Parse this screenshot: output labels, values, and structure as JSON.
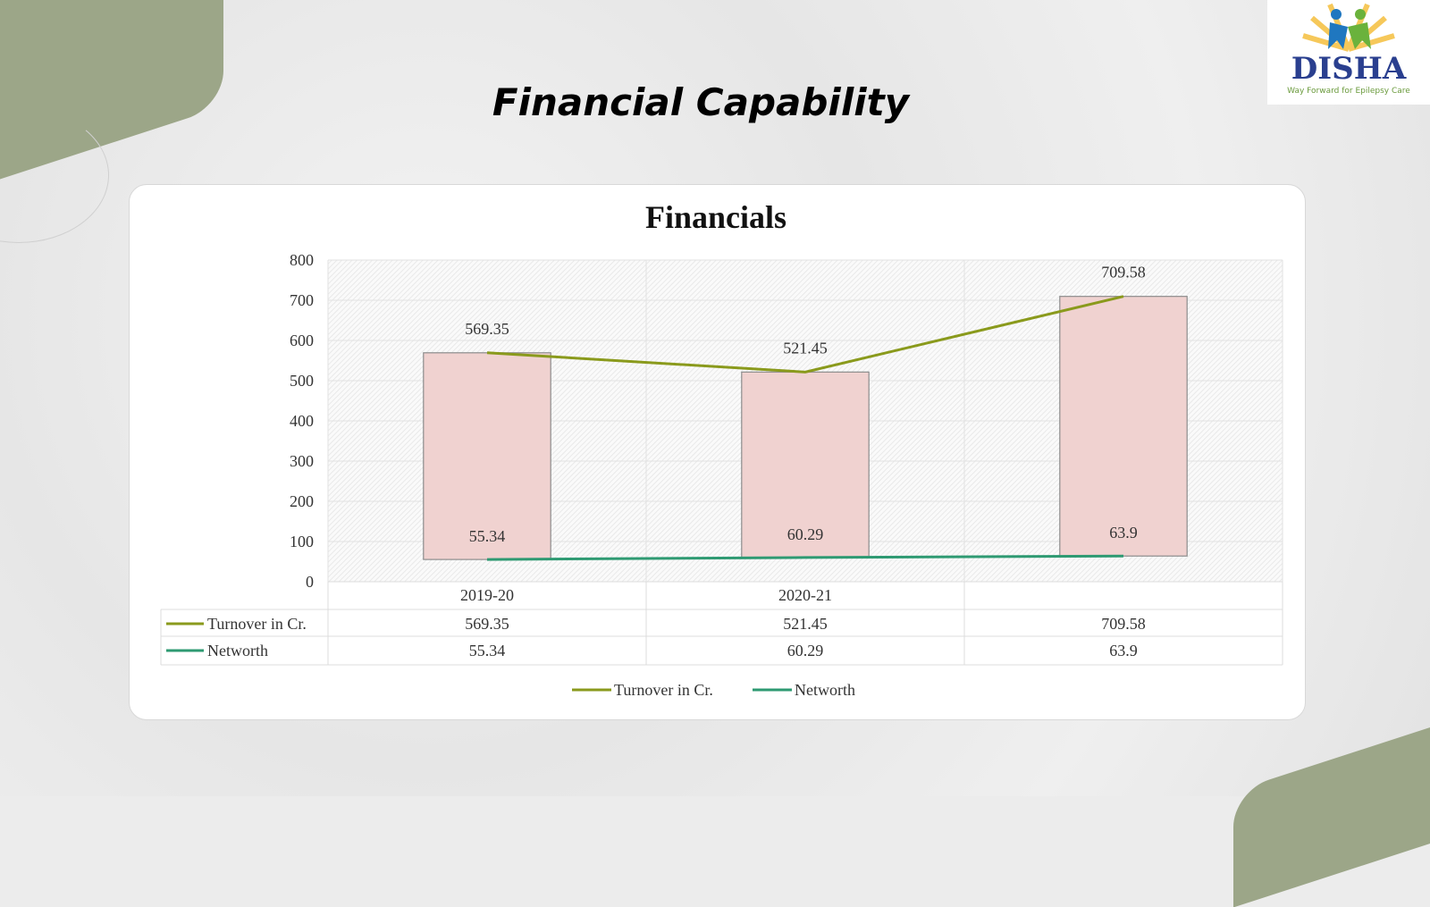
{
  "slide": {
    "heading": "Financial Capability"
  },
  "logo": {
    "name": "DISHA",
    "tagline": "Way Forward for Epilepsy Care"
  },
  "colors": {
    "turnover": "#8a9a1c",
    "networth": "#2e9a72",
    "bar_fill": "#f0d2d0",
    "bar_stroke": "#8c8c8c",
    "accent_shape": "#9ca688"
  },
  "chart_data": {
    "type": "line",
    "title": "Financials",
    "categories": [
      "2019-20",
      "2020-21",
      ""
    ],
    "series": [
      {
        "name": "Turnover in Cr.",
        "values": [
          569.35,
          521.45,
          709.58
        ]
      },
      {
        "name": "Networth",
        "values": [
          55.34,
          60.29,
          63.9
        ]
      }
    ],
    "up_down_bars": true,
    "ylim": [
      0,
      800
    ],
    "yticks": [
      "0",
      "100",
      "200",
      "300",
      "400",
      "500",
      "600",
      "700",
      "800"
    ],
    "data_labels": {
      "turnover": [
        "569.35",
        "521.45",
        "709.58"
      ],
      "networth": [
        "55.34",
        "60.29",
        "63.9"
      ]
    },
    "data_table": true,
    "grid": true,
    "legend": "bottom"
  }
}
